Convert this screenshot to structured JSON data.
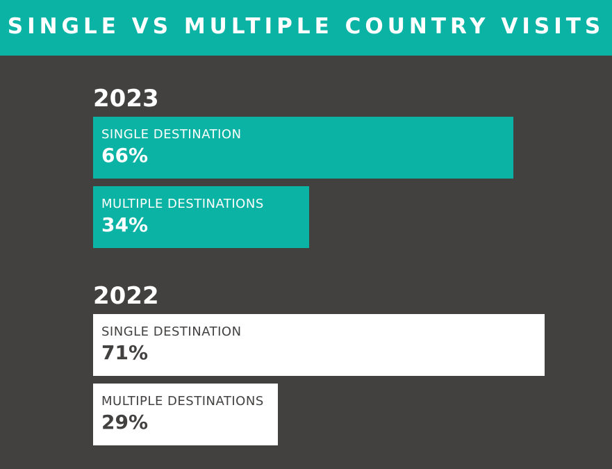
{
  "header": {
    "title": "SINGLE VS MULTIPLE COUNTRY VISITS"
  },
  "colors": {
    "background": "#434140",
    "accent": "#0bb3a4",
    "white": "#ffffff",
    "text_on_accent": "#ffffff",
    "text_on_white": "#434140"
  },
  "chart_data": {
    "type": "bar",
    "groups": [
      {
        "year": "2023",
        "color": "#0bb3a4",
        "bars": [
          {
            "label": "SINGLE DESTINATION",
            "value": 66,
            "value_label": "66%"
          },
          {
            "label": "MULTIPLE DESTINATIONS",
            "value": 34,
            "value_label": "34%"
          }
        ]
      },
      {
        "year": "2022",
        "color": "#ffffff",
        "bars": [
          {
            "label": "SINGLE DESTINATION",
            "value": 71,
            "value_label": "71%"
          },
          {
            "label": "MULTIPLE DESTINATIONS",
            "value": 29,
            "value_label": "29%"
          }
        ]
      }
    ],
    "title": "SINGLE VS MULTIPLE COUNTRY VISITS",
    "xlim": [
      0,
      100
    ],
    "grid": false
  }
}
